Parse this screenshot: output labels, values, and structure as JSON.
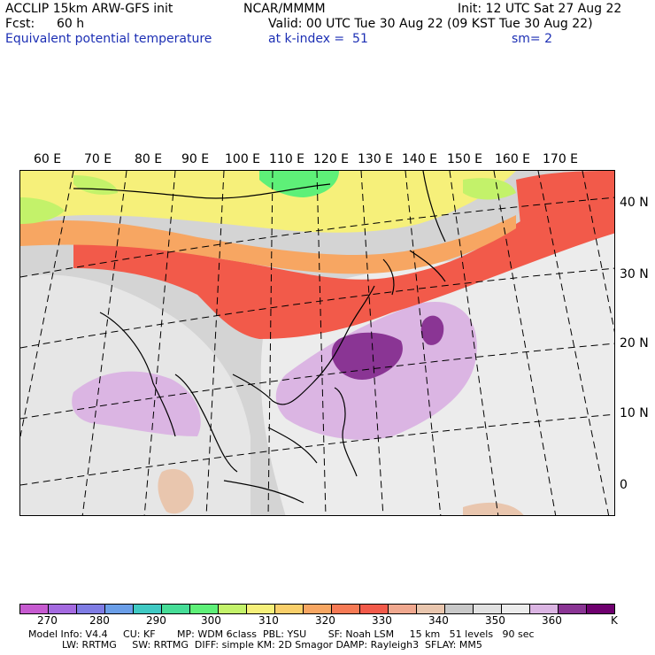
{
  "header": {
    "model": "ACCLIP 15km ARW-GFS init",
    "center": "NCAR/MMMM",
    "init": "Init: 12 UTC Sat 27 Aug 22",
    "fcst_label": "Fcst:",
    "fcst_value": "60 h",
    "valid": "Valid: 00 UTC Tue 30 Aug 22 (09 KST Tue 30 Aug 22)",
    "field": "Equivalent potential temperature",
    "level": "at k-index =  51",
    "smoothing": "sm= 2"
  },
  "map": {
    "lon_labels": [
      "60 E",
      "70 E",
      "80 E",
      "90 E",
      "100 E",
      "110 E",
      "120 E",
      "130 E",
      "140 E",
      "150 E",
      "160 E",
      "170 E"
    ],
    "lat_labels": [
      "40 N",
      "30 N",
      "20 N",
      "10 N",
      "0"
    ],
    "field_regions": [
      {
        "name": "northern-band",
        "value_range": "300-320 K",
        "color": "#f5e663"
      },
      {
        "name": "warm-band",
        "value_range": "330-340 K",
        "color": "#f2594a"
      },
      {
        "name": "tropical-maximum",
        "value_range": "360-370 K",
        "color": "#8a3594"
      }
    ]
  },
  "colorbar": {
    "unit": "K",
    "colors": [
      "#c65ad0",
      "#a46ae0",
      "#7f7ce4",
      "#6a9ee8",
      "#3fc9c3",
      "#46dd97",
      "#5ef078",
      "#c3f26a",
      "#f6f07a",
      "#f9cf6a",
      "#f7a662",
      "#f67a55",
      "#f25a4a",
      "#f0a88f",
      "#e9c6ae",
      "#c8c8c8",
      "#e1e1e1",
      "#ececec",
      "#dbb5e3",
      "#8a3594",
      "#6e006e"
    ],
    "ticks": [
      "270",
      "280",
      "290",
      "300",
      "310",
      "320",
      "330",
      "340",
      "350",
      "360",
      "K"
    ]
  },
  "footer": {
    "line1": "Model Info: V4.4     CU: KF       MP: WDM 6class  PBL: YSU       SF: Noah LSM     15 km   51 levels   90 sec",
    "line2": "LW: RRTMG     SW: RRTMG  DIFF: simple KM: 2D Smagor DAMP: Rayleigh3  SFLAY: MM5"
  }
}
